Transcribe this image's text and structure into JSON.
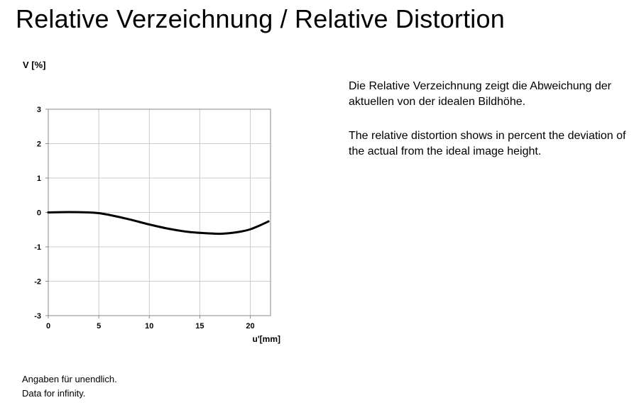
{
  "page": {
    "title": "Relative Verzeichnung / Relative Distortion"
  },
  "description": {
    "german": "Die Relative Verzeichnung zeigt die Abweichung der aktuellen von der idealen Bildhöhe.",
    "english": "The relative distortion shows in percent the deviation of the actual from the ideal image height."
  },
  "footnote": {
    "german": "Angaben für unendlich.",
    "english": "Data for infinity."
  },
  "chart_data": {
    "type": "line",
    "title": "",
    "xlabel": "u'[mm]",
    "ylabel": "V [%]",
    "xlim": [
      0,
      22
    ],
    "ylim": [
      -3,
      3
    ],
    "x_ticks": [
      0,
      5,
      10,
      15,
      20
    ],
    "y_ticks": [
      3,
      2,
      1,
      0,
      -1,
      -2,
      -3
    ],
    "x_tick_labels": [
      "0",
      "5",
      "10",
      "15",
      "20"
    ],
    "y_tick_labels": [
      "3",
      "2",
      "1",
      "0",
      "-1",
      "-2",
      "-3"
    ],
    "grid": true,
    "legend": "none",
    "line_color": "#000000",
    "grid_color": "#cccccc",
    "series": [
      {
        "x": [
          0,
          2,
          4,
          5,
          6,
          8,
          10,
          12,
          14,
          16,
          17,
          18,
          19,
          20,
          21,
          21.8
        ],
        "y": [
          0,
          0.01,
          0,
          -0.02,
          -0.07,
          -0.2,
          -0.35,
          -0.48,
          -0.57,
          -0.61,
          -0.62,
          -0.6,
          -0.56,
          -0.49,
          -0.37,
          -0.26
        ]
      }
    ]
  }
}
